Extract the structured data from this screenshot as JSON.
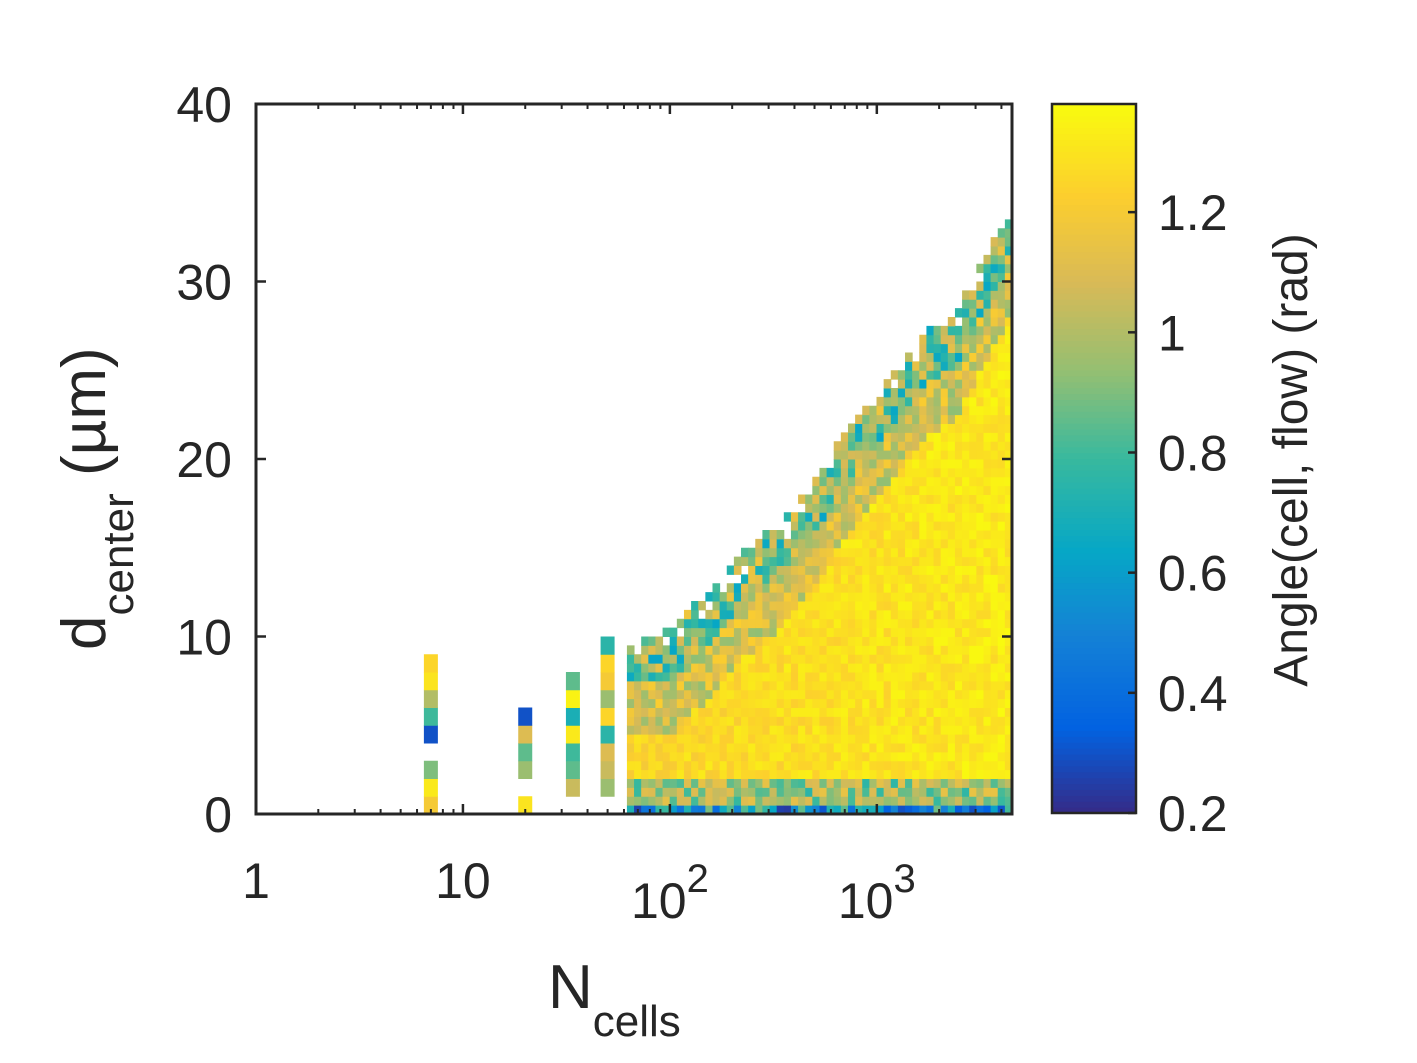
{
  "chart_data": {
    "type": "heatmap",
    "title": "",
    "xlabel": {
      "main": "N",
      "sub": "cells"
    },
    "ylabel": {
      "main": "d",
      "sub": "center",
      "unit": " (µm)"
    },
    "x_scale": "log",
    "xlim": [
      1,
      4500
    ],
    "ylim": [
      0,
      40
    ],
    "x_ticks": [
      {
        "value": 1,
        "base": "1",
        "exp": ""
      },
      {
        "value": 10,
        "base": "10",
        "exp": ""
      },
      {
        "value": 100,
        "base": "10",
        "exp": "2"
      },
      {
        "value": 1000,
        "base": "10",
        "exp": "3"
      }
    ],
    "y_ticks": [
      "0",
      "10",
      "20",
      "30",
      "40"
    ],
    "y_tick_values": [
      0,
      10,
      20,
      30,
      40
    ],
    "colorbar": {
      "label": "Angle(cell, flow) (rad)",
      "range": [
        0.2,
        1.38
      ],
      "ticks": [
        "0.2",
        "0.4",
        "0.6",
        "0.8",
        "1",
        "1.2"
      ],
      "tick_values": [
        0.2,
        0.4,
        0.6,
        0.8,
        1.0,
        1.2
      ],
      "colormap": "parula"
    },
    "columns": [
      {
        "x": 7,
        "cells": [
          [
            0.5,
            1.2
          ],
          [
            1.5,
            1.32
          ],
          [
            2.5,
            0.9
          ],
          [
            4.5,
            0.3
          ],
          [
            5.5,
            0.8
          ],
          [
            6.5,
            1.0
          ],
          [
            7.5,
            1.3
          ],
          [
            8.5,
            1.25
          ]
        ]
      },
      {
        "x": 20,
        "cells": [
          [
            0.5,
            1.3
          ],
          [
            2.5,
            0.95
          ],
          [
            3.5,
            0.85
          ],
          [
            4.5,
            1.1
          ],
          [
            5.5,
            0.3
          ]
        ]
      },
      {
        "x": 34,
        "cells": [
          [
            1.5,
            1.05
          ],
          [
            2.5,
            0.85
          ],
          [
            3.5,
            0.8
          ],
          [
            4.5,
            1.32
          ],
          [
            5.5,
            0.7
          ],
          [
            6.5,
            1.35
          ],
          [
            7.5,
            0.85
          ]
        ]
      },
      {
        "x": 50,
        "cells": [
          [
            1.5,
            0.95
          ],
          [
            2.5,
            1.05
          ],
          [
            3.5,
            1.1
          ],
          [
            4.5,
            0.75
          ],
          [
            5.5,
            1.25
          ],
          [
            6.5,
            0.95
          ],
          [
            7.5,
            1.2
          ],
          [
            8.5,
            1.25
          ],
          [
            9.5,
            0.75
          ]
        ]
      }
    ],
    "wedge": {
      "x_start": 62,
      "x_end": 4500,
      "edge_points": [
        [
          62,
          10
        ],
        [
          90,
          10
        ],
        [
          120,
          11
        ],
        [
          170,
          13
        ],
        [
          250,
          15
        ],
        [
          400,
          17
        ],
        [
          600,
          20
        ],
        [
          900,
          23
        ],
        [
          1300,
          25
        ],
        [
          1800,
          27
        ],
        [
          2400,
          28
        ],
        [
          3000,
          30
        ],
        [
          4000,
          33
        ],
        [
          4500,
          34
        ]
      ],
      "near_edge_value": 0.9,
      "bulk_value": 1.25,
      "right_value": 1.32,
      "bottom_row_value": 0.55,
      "second_row_value": 0.95
    }
  }
}
